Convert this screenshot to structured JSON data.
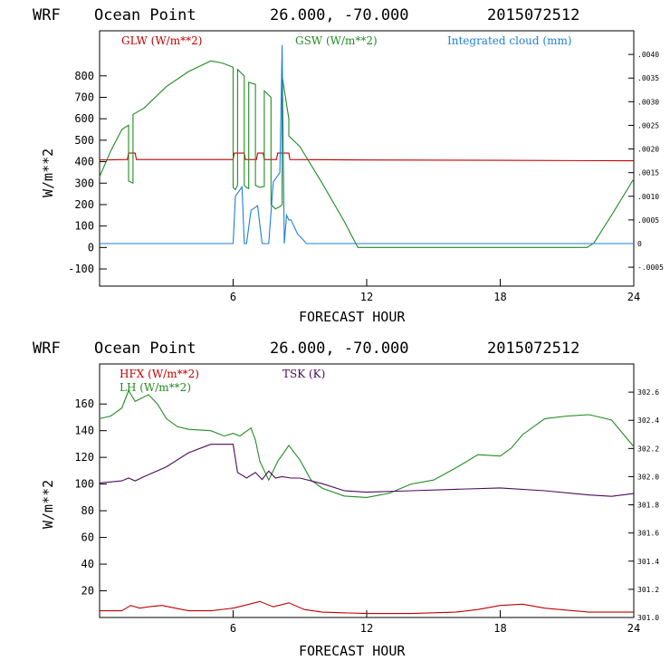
{
  "header": {
    "model": "WRF",
    "location": "Ocean Point",
    "coords": "26.000, -70.000",
    "run": "2015072512"
  },
  "colors": {
    "red": "#c00000",
    "green": "#228b22",
    "blue": "#1e7fd6",
    "purple": "#4b0a5a"
  },
  "chart_data": [
    {
      "type": "line",
      "xlabel": "FORECAST HOUR",
      "ylabel": "W/m**2",
      "xlim": [
        0,
        24
      ],
      "ylim": [
        -180,
        1010
      ],
      "xticks": [
        6,
        12,
        18,
        24
      ],
      "yticks": [
        -100,
        0,
        100,
        200,
        300,
        400,
        500,
        600,
        700,
        800
      ],
      "y2lim": [
        -0.0009,
        0.0045
      ],
      "y2ticks": [
        -0.0005,
        0,
        0.0005,
        0.001,
        0.0015,
        0.002,
        0.0025,
        0.003,
        0.0035,
        0.004
      ],
      "y2ticklabels": [
        "-.0005",
        "0",
        ".0005",
        ".0010",
        ".0015",
        ".0020",
        ".0025",
        ".0030",
        ".0035",
        ".0040"
      ],
      "series": [
        {
          "name": "GLW (W/m**2)",
          "color": "#c00000",
          "axis": "left",
          "x": [
            0,
            1.25,
            1.3,
            1.6,
            1.65,
            6.0,
            6.05,
            6.5,
            6.55,
            7.05,
            7.1,
            7.35,
            7.4,
            7.95,
            8.0,
            8.5,
            8.55,
            12,
            18,
            24
          ],
          "y": [
            408,
            410,
            440,
            440,
            410,
            410,
            440,
            440,
            410,
            410,
            440,
            440,
            410,
            410,
            440,
            440,
            410,
            408,
            406,
            404
          ]
        },
        {
          "name": "GSW (W/m**2)",
          "color": "#228b22",
          "axis": "left",
          "x": [
            0,
            0.5,
            1.0,
            1.3,
            1.3,
            1.5,
            1.5,
            2.0,
            3.0,
            4.0,
            5.0,
            5.5,
            6.0,
            6.0,
            6.1,
            6.2,
            6.2,
            6.5,
            6.5,
            6.6,
            6.7,
            6.7,
            7.0,
            7.0,
            7.2,
            7.4,
            7.4,
            7.7,
            7.7,
            7.9,
            8.1,
            8.2,
            8.2,
            8.5,
            8.5,
            9.0,
            10.0,
            11.0,
            11.6,
            12,
            18,
            21.9,
            22.2,
            23,
            24
          ],
          "y": [
            330,
            450,
            550,
            570,
            310,
            300,
            620,
            650,
            750,
            820,
            870,
            860,
            840,
            280,
            270,
            290,
            830,
            800,
            290,
            280,
            275,
            770,
            760,
            290,
            280,
            285,
            730,
            700,
            200,
            180,
            190,
            200,
            800,
            600,
            520,
            470,
            300,
            120,
            0,
            0,
            0,
            0,
            20,
            150,
            320
          ]
        },
        {
          "name": "Integrated cloud (mm)",
          "color": "#1e7fd6",
          "axis": "right",
          "x": [
            0,
            6.0,
            6.1,
            6.4,
            6.5,
            6.6,
            6.8,
            7.1,
            7.3,
            7.6,
            7.8,
            8.1,
            8.2,
            8.3,
            8.4,
            8.5,
            8.6,
            8.9,
            9.3,
            12,
            18,
            24
          ],
          "y": [
            0,
            0,
            0.001,
            0.0012,
            0,
            0,
            0.0007,
            0.0008,
            0,
            0,
            0.0013,
            0.0015,
            0.0042,
            0,
            0.0006,
            0.0005,
            0.0005,
            0.0002,
            0,
            0,
            0,
            0
          ]
        }
      ]
    },
    {
      "type": "line",
      "xlabel": "FORECAST HOUR",
      "ylabel": "W/m**2",
      "xlim": [
        0,
        24
      ],
      "ylim": [
        0,
        190
      ],
      "xticks": [
        6,
        12,
        18,
        24
      ],
      "yticks": [
        20,
        40,
        60,
        80,
        100,
        120,
        140,
        160
      ],
      "y2lim": [
        301.0,
        302.8
      ],
      "y2ticks": [
        301.0,
        301.2,
        301.4,
        301.6,
        301.8,
        302.0,
        302.2,
        302.4,
        302.6
      ],
      "y2ticklabels": [
        "301.0",
        "301.2",
        "301.4",
        "301.6",
        "301.8",
        "302.0",
        "302.2",
        "302.4",
        "302.6"
      ],
      "series": [
        {
          "name": "HFX (W/m**2)",
          "color": "#c00000",
          "axis": "left",
          "x": [
            0,
            1,
            1.4,
            1.8,
            2.2,
            2.8,
            3.4,
            4,
            5,
            6,
            6.5,
            7.2,
            7.8,
            8.5,
            9.2,
            10,
            12,
            14,
            16,
            17,
            18,
            19,
            20,
            22,
            24
          ],
          "y": [
            5,
            5,
            9,
            7,
            8,
            9,
            7,
            5,
            5,
            7,
            9,
            12,
            8,
            11,
            6,
            4,
            3,
            3,
            4,
            6,
            9,
            10,
            7,
            4,
            4
          ]
        },
        {
          "name": "LH (W/m**2)",
          "color": "#228b22",
          "axis": "left",
          "x": [
            0,
            0.5,
            1.0,
            1.3,
            1.6,
            2.2,
            2.6,
            3.0,
            3.5,
            4.0,
            5.0,
            5.6,
            6.0,
            6.3,
            6.8,
            7.0,
            7.2,
            7.6,
            8.0,
            8.5,
            9.0,
            9.5,
            10,
            11,
            12,
            13,
            14,
            15,
            16,
            17,
            18,
            18.5,
            19,
            20,
            21,
            22,
            23,
            24
          ],
          "y": [
            149,
            151,
            157,
            170,
            162,
            167,
            160,
            149,
            143,
            141,
            140,
            136,
            138,
            136,
            142,
            133,
            117,
            103,
            117,
            129,
            118,
            103,
            97,
            91,
            90,
            93,
            100,
            103,
            112,
            122,
            121,
            127,
            137,
            149,
            151,
            152,
            148,
            128
          ]
        },
        {
          "name": "TSK (K)",
          "color": "#4b0a5a",
          "axis": "right",
          "x": [
            0,
            1,
            1.3,
            1.6,
            2,
            3,
            4,
            5,
            6,
            6.2,
            6.6,
            7,
            7.3,
            7.6,
            7.9,
            8.2,
            8.6,
            9,
            10,
            11,
            12,
            14,
            16,
            18,
            20,
            22,
            23,
            24
          ],
          "y": [
            301.955,
            301.97,
            301.99,
            301.97,
            302.0,
            302.07,
            302.17,
            302.23,
            302.23,
            302.03,
            301.99,
            302.03,
            301.98,
            302.04,
            301.99,
            302.0,
            301.99,
            301.99,
            301.95,
            301.9,
            301.89,
            301.9,
            301.91,
            301.92,
            301.9,
            301.87,
            301.86,
            301.88
          ]
        }
      ]
    }
  ]
}
